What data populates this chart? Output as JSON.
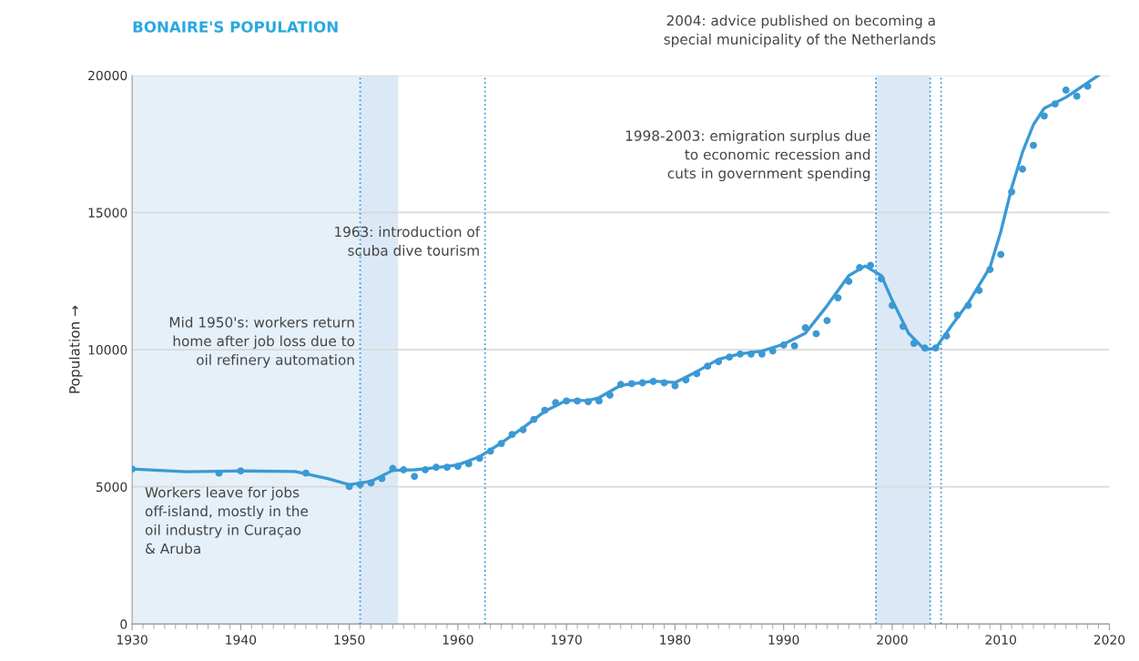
{
  "chart_data": {
    "type": "line",
    "title": "BONAIRE'S POPULATION",
    "ylabel": "Population →",
    "xlim": [
      1930,
      2020
    ],
    "xticks": [
      1930,
      1940,
      1950,
      1960,
      1970,
      1980,
      1990,
      2000,
      2010,
      2020
    ],
    "ylim": [
      0,
      20000
    ],
    "yticks": [
      0,
      5000,
      10000,
      15000,
      20000
    ],
    "grid": "y",
    "legend": false,
    "series": [
      {
        "type": "scatter",
        "color": "#3b99d4",
        "marker": "circle",
        "x": [
          1930,
          1938,
          1940,
          1946,
          1950,
          1951,
          1952,
          1953,
          1954,
          1955,
          1956,
          1957,
          1958,
          1959,
          1960,
          1961,
          1962,
          1963,
          1964,
          1965,
          1966,
          1967,
          1968,
          1969,
          1970,
          1971,
          1972,
          1973,
          1974,
          1975,
          1976,
          1977,
          1978,
          1979,
          1980,
          1981,
          1982,
          1983,
          1984,
          1985,
          1986,
          1987,
          1988,
          1989,
          1990,
          1991,
          1992,
          1993,
          1994,
          1995,
          1996,
          1997,
          1998,
          1999,
          2000,
          2001,
          2002,
          2003,
          2004,
          2005,
          2006,
          2007,
          2008,
          2009,
          2010,
          2011,
          2012,
          2013,
          2014,
          2015,
          2016,
          2017,
          2018
        ],
        "values": [
          5650,
          5500,
          5580,
          5500,
          5010,
          5080,
          5140,
          5300,
          5670,
          5620,
          5380,
          5620,
          5710,
          5710,
          5750,
          5840,
          6040,
          6300,
          6580,
          6910,
          7080,
          7460,
          7790,
          8070,
          8130,
          8130,
          8100,
          8130,
          8340,
          8730,
          8760,
          8790,
          8840,
          8790,
          8680,
          8900,
          9120,
          9400,
          9560,
          9730,
          9840,
          9840,
          9840,
          9950,
          10170,
          10140,
          10800,
          10580,
          11060,
          11890,
          12490,
          12990,
          13070,
          12580,
          11610,
          10850,
          10230,
          10060,
          10060,
          10500,
          11260,
          11610,
          12160,
          12920,
          13470,
          15750,
          16580,
          17450,
          18520,
          18960,
          19460,
          19240,
          19600
        ]
      },
      {
        "color": "#3b99d4",
        "marker": "none",
        "line_style": "solid",
        "x": [
          1930,
          1935,
          1940,
          1945,
          1948,
          1950,
          1952,
          1954,
          1956,
          1958,
          1960,
          1962,
          1964,
          1966,
          1968,
          1970,
          1972,
          1973,
          1975,
          1978,
          1980,
          1982,
          1984,
          1986,
          1988,
          1990,
          1992,
          1994,
          1996,
          1997.5,
          1999,
          2000,
          2001.5,
          2003,
          2004,
          2005.5,
          2007,
          2009,
          2010,
          2011,
          2012,
          2013,
          2014,
          2016,
          2019
        ],
        "values": [
          5650,
          5550,
          5580,
          5560,
          5300,
          5080,
          5200,
          5600,
          5620,
          5700,
          5800,
          6100,
          6600,
          7150,
          7750,
          8150,
          8150,
          8250,
          8700,
          8850,
          8800,
          9200,
          9650,
          9850,
          9950,
          10200,
          10600,
          11600,
          12700,
          13050,
          12700,
          11800,
          10600,
          10000,
          10050,
          10900,
          11700,
          13000,
          14300,
          15900,
          17200,
          18200,
          18800,
          19200,
          20000
        ]
      }
    ],
    "bands": [
      {
        "axis": "x",
        "from": 1930,
        "to": 1951,
        "color": "#e6f0f9",
        "label": "Workers leave for jobs\noff-island, mostly in the\noil industry in Curaçao\n& Aruba"
      },
      {
        "axis": "x",
        "from": 1951,
        "to": 1954.5,
        "color": "#dbe9f6"
      },
      {
        "axis": "x",
        "from": 1998.5,
        "to": 2003.5,
        "color": "#dbe9f6",
        "label": "1998-2003: emigration surplus due\nto economic recession and\ncuts in government spending"
      }
    ],
    "ref_lines": [
      {
        "axis": "x",
        "value": 1951,
        "color": "#3b99d4",
        "line_style": "dotted",
        "label": "Mid 1950's: workers return\nhome after job loss due to\noil refinery automation"
      },
      {
        "axis": "x",
        "value": 1962.5,
        "color": "#3b99d4",
        "line_style": "dotted",
        "label": "1963: introduction of\nscuba dive tourism"
      },
      {
        "axis": "x",
        "value": 1998.5,
        "color": "#3b99d4",
        "line_style": "dotted"
      },
      {
        "axis": "x",
        "value": 2003.5,
        "color": "#3b99d4",
        "line_style": "dotted"
      },
      {
        "axis": "x",
        "value": 2004.5,
        "color": "#3b99d4",
        "line_style": "dotted",
        "label": "2004: advice published on becoming a\nspecial municipality of the Netherlands"
      }
    ]
  }
}
